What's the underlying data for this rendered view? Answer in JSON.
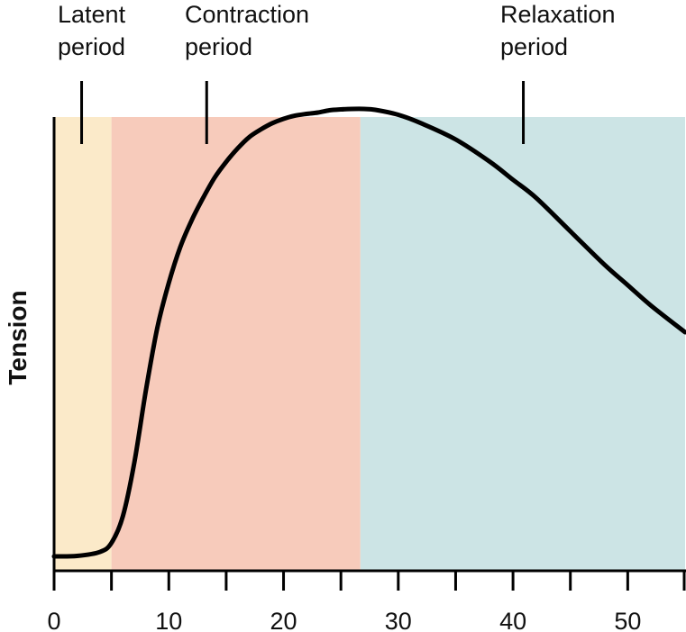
{
  "chart_data": {
    "type": "line",
    "ylabel": "Tension",
    "xlabel": "",
    "xlim": [
      0,
      55
    ],
    "ylim": [
      0,
      1
    ],
    "x_ticks": [
      0,
      5,
      10,
      15,
      20,
      25,
      30,
      35,
      40,
      45,
      50,
      55
    ],
    "x_tick_labels": [
      "0",
      "10",
      "20",
      "30",
      "40",
      "50"
    ],
    "x_tick_label_values": [
      0,
      10,
      20,
      30,
      40,
      50
    ],
    "grid": false,
    "periods": [
      {
        "line1": "Latent",
        "line2": "period",
        "x_start": 0,
        "x_end": 5,
        "marker_x": 2.4,
        "color": "#fbeac9"
      },
      {
        "line1": "Contraction",
        "line2": "period",
        "x_start": 5,
        "x_end": 26.7,
        "marker_x": 13.3,
        "color": "#f7cbbb"
      },
      {
        "line1": "Relaxation",
        "line2": "period",
        "x_start": 26.7,
        "x_end": 55,
        "marker_x": 40.9,
        "color": "#cce4e5"
      }
    ],
    "series": [
      {
        "color": "#000000",
        "x": [
          0,
          2,
          4,
          5,
          6,
          7,
          8,
          9,
          10,
          11,
          12,
          13,
          14,
          15,
          16,
          17,
          18,
          19,
          20,
          21,
          22,
          23,
          24,
          25,
          26,
          27,
          28,
          30,
          32,
          35,
          38,
          40,
          42,
          45,
          48,
          50,
          52,
          55
        ],
        "y": [
          0.01,
          0.011,
          0.02,
          0.04,
          0.1,
          0.22,
          0.38,
          0.52,
          0.62,
          0.7,
          0.76,
          0.81,
          0.855,
          0.89,
          0.92,
          0.945,
          0.962,
          0.976,
          0.986,
          0.993,
          0.997,
          1.0,
          1.005,
          1.007,
          1.008,
          1.008,
          1.006,
          0.995,
          0.976,
          0.94,
          0.89,
          0.85,
          0.81,
          0.735,
          0.66,
          0.615,
          0.57,
          0.51
        ]
      }
    ]
  }
}
